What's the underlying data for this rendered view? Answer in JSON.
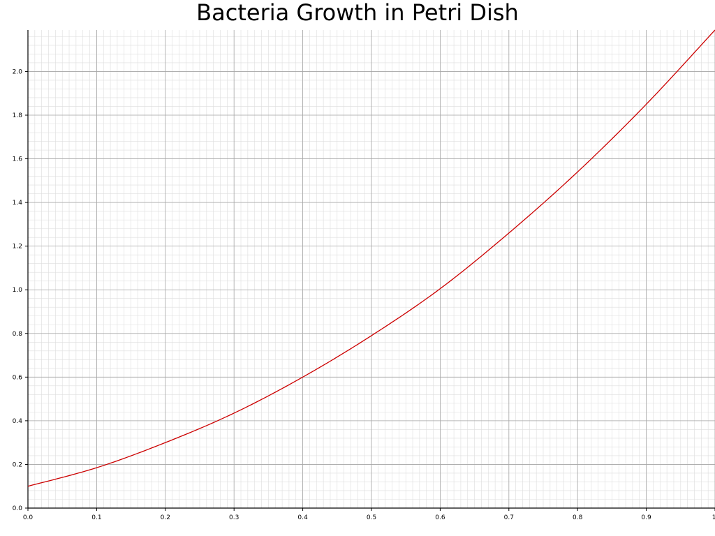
{
  "chart_data": {
    "type": "line",
    "title": "Bacteria Growth in Petri Dish",
    "xlabel": "",
    "ylabel": "",
    "xlim": [
      0,
      1.0
    ],
    "ylim": [
      0,
      2.19
    ],
    "x_ticks": [
      "0.0",
      "0.1",
      "0.2",
      "0.3",
      "0.4",
      "0.5",
      "0.6",
      "0.7",
      "0.8",
      "0.9",
      "1."
    ],
    "y_ticks": [
      "0.0",
      "0.2",
      "0.4",
      "0.6",
      "0.8",
      "1.0",
      "1.2",
      "1.4",
      "1.6",
      "1.8",
      "2.0"
    ],
    "grid": true,
    "legend": "none",
    "series": [
      {
        "color": "#cc0000",
        "x": [
          0.0,
          0.1,
          0.2,
          0.3,
          0.4,
          0.5,
          0.6,
          0.7,
          0.8,
          0.9,
          1.0
        ],
        "y": [
          0.1,
          0.185,
          0.3,
          0.435,
          0.6,
          0.79,
          1.005,
          1.26,
          1.54,
          1.85,
          2.19
        ]
      }
    ]
  },
  "colors": {
    "line": "#cc0000",
    "major_grid": "#a6a6a6",
    "minor_grid": "#dddddd",
    "axis": "#000000"
  }
}
